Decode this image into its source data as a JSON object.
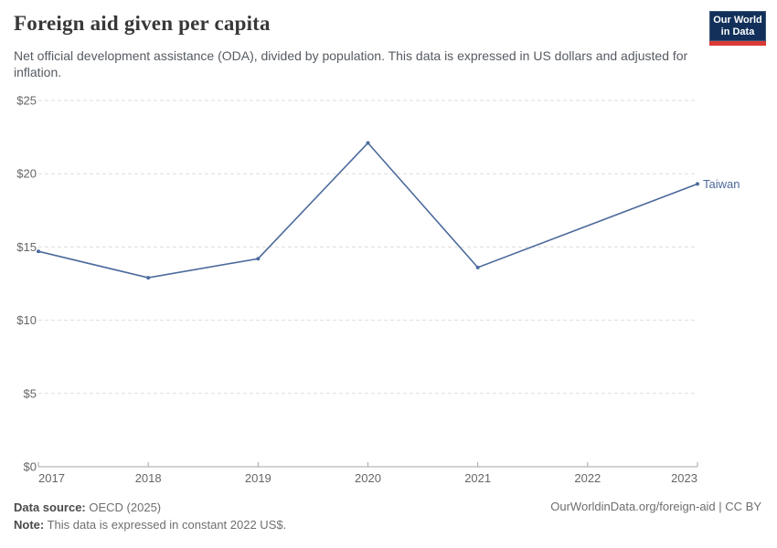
{
  "header": {
    "title": "Foreign aid given per capita",
    "subtitle": "Net official development assistance (ODA), divided by population. This data is expressed in US dollars and adjusted for inflation."
  },
  "logo": {
    "line1": "Our World",
    "line2": "in Data",
    "bg_color": "#12305a",
    "bar_color": "#d93a35"
  },
  "chart_data": {
    "type": "line",
    "title": "Foreign aid given per capita",
    "x": [
      2017,
      2018,
      2019,
      2020,
      2021,
      2022,
      2023
    ],
    "series": [
      {
        "name": "Taiwan",
        "values": [
          14.7,
          12.9,
          14.2,
          22.1,
          13.6,
          null,
          19.3
        ],
        "color": "#4C6A9C"
      }
    ],
    "xlabel": "",
    "ylabel": "",
    "ylim": [
      0,
      25
    ],
    "yticks": [
      0,
      5,
      10,
      15,
      20,
      25
    ],
    "ytick_prefix": "$",
    "grid": "horizontal dashed",
    "legend_position": "end-of-line label",
    "missing_data_note": "no marker at 2022; line interpolates 2021 to 2023"
  },
  "footer": {
    "source_label": "Data source:",
    "source_value": "OECD (2025)",
    "note_label": "Note:",
    "note_value": "This data is expressed in constant 2022 US$.",
    "link": "OurWorldinData.org/foreign-aid | CC BY"
  },
  "colors": {
    "line": "#4C6A9C",
    "title_text": "#383838",
    "subtitle_text": "#565b61",
    "axis_text": "#666666",
    "gridline": "#dddddd",
    "axis_line": "#a5a5a5"
  }
}
